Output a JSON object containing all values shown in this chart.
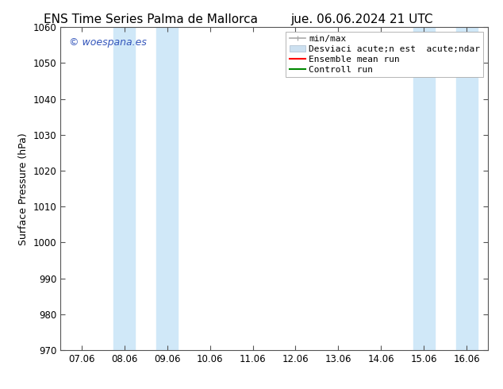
{
  "title_left": "ENS Time Series Palma de Mallorca",
  "title_right": "jue. 06.06.2024 21 UTC",
  "ylabel": "Surface Pressure (hPa)",
  "ylim": [
    970,
    1060
  ],
  "yticks": [
    970,
    980,
    990,
    1000,
    1010,
    1020,
    1030,
    1040,
    1050,
    1060
  ],
  "xtick_labels": [
    "07.06",
    "08.06",
    "09.06",
    "10.06",
    "11.06",
    "12.06",
    "13.06",
    "14.06",
    "15.06",
    "16.06"
  ],
  "xtick_positions": [
    0,
    1,
    2,
    3,
    4,
    5,
    6,
    7,
    8,
    9
  ],
  "xlim": [
    -0.5,
    9.5
  ],
  "background_color": "#ffffff",
  "plot_bg_color": "#ffffff",
  "watermark": "© woespana.es",
  "watermark_color": "#3355bb",
  "shaded_bands": [
    {
      "x_start": 0.75,
      "x_end": 1.25,
      "color": "#d0e8f8"
    },
    {
      "x_start": 1.75,
      "x_end": 2.25,
      "color": "#d0e8f8"
    },
    {
      "x_start": 7.75,
      "x_end": 8.25,
      "color": "#d0e8f8"
    },
    {
      "x_start": 8.75,
      "x_end": 9.25,
      "color": "#d0e8f8"
    }
  ],
  "legend_label_minmax": "min/max",
  "legend_label_std": "Desviaci acute;n est  acute;ndar",
  "legend_label_ens": "Ensemble mean run",
  "legend_label_ctrl": "Controll run",
  "minmax_color": "#aaaaaa",
  "std_color": "#cce0f0",
  "ens_color": "#ff0000",
  "ctrl_color": "#008800",
  "title_fontsize": 11,
  "axis_label_fontsize": 9,
  "tick_fontsize": 8.5,
  "watermark_fontsize": 9,
  "legend_fontsize": 8
}
